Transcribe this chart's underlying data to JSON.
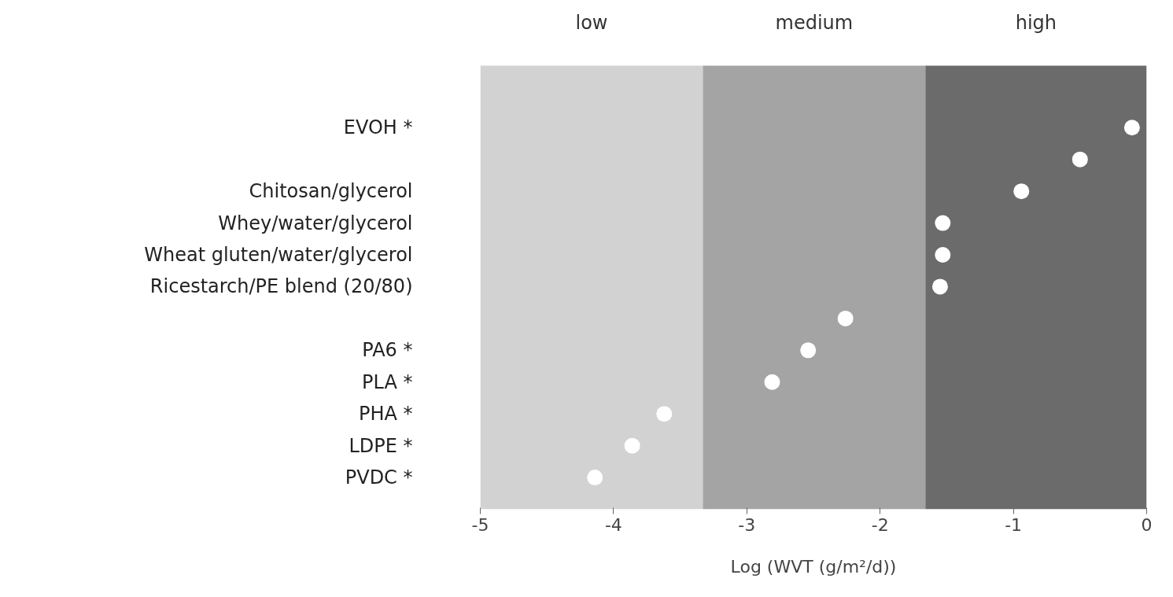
{
  "chart_data": {
    "type": "scatter",
    "orientation": "horizontal",
    "xlabel": "Log (WVT (g/m²/d))",
    "categories": [
      "EVOH *",
      null,
      "Chitosan/glycerol",
      "Whey/water/glycerol",
      "Wheat gluten/water/glycerol",
      "Ricestarch/PE blend (20/80)",
      null,
      "PA6 *",
      "PLA *",
      "PHA *",
      "LDPE *",
      "PVDC *"
    ],
    "values": [
      -0.11,
      -0.5,
      -0.94,
      -1.53,
      -1.53,
      -1.55,
      -2.26,
      -2.54,
      -2.81,
      -3.62,
      -3.86,
      -4.14
    ],
    "color": "#ffffff",
    "marker": "circle",
    "xlim": [
      -5,
      0
    ],
    "xticks": [
      -5,
      -4,
      -3,
      -2,
      -1,
      0
    ],
    "grid": false,
    "bands": [
      {
        "axis": "x",
        "from": -5,
        "to": -3.33,
        "label": "low",
        "color": "#d2d2d2"
      },
      {
        "axis": "x",
        "from": -3.33,
        "to": -1.66,
        "label": "medium",
        "color": "#a4a4a4"
      },
      {
        "axis": "x",
        "from": -1.66,
        "to": 0,
        "label": "high",
        "color": "#6b6b6b"
      }
    ]
  }
}
